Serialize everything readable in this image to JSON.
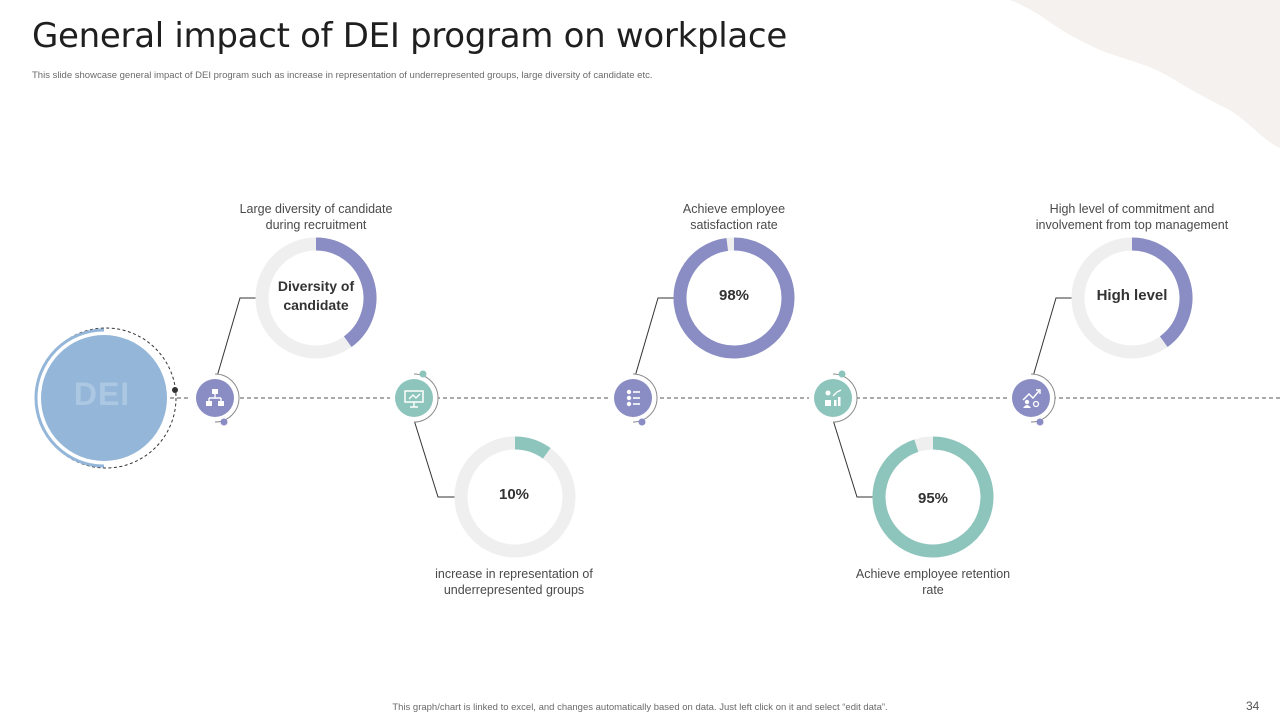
{
  "title": "General impact of DEI program on workplace",
  "subtitle": "This slide showcase general impact of DEI  program such as increase in representation of underrepresented groups, large diversity of candidate etc.",
  "center_label": "DEI",
  "items": [
    {
      "caption": "Large diversity  of candidate\nduring recruitment",
      "ring_label": "Diversity of\ncandidate",
      "percent": 40,
      "color": "#8a8cc4",
      "icon": "hierarchy-icon"
    },
    {
      "caption": "increase in representation of\nunderrepresented  groups",
      "ring_label": "10%",
      "percent": 10,
      "color": "#8dc5bd",
      "icon": "presentation-icon"
    },
    {
      "caption": "Achieve employee\nsatisfaction rate",
      "ring_label": "98%",
      "percent": 98,
      "color": "#8a8cc4",
      "icon": "list-icon"
    },
    {
      "caption": "Achieve  employee retention\nrate",
      "ring_label": "95%",
      "percent": 95,
      "color": "#8dc5bd",
      "icon": "growth-chart-icon"
    },
    {
      "caption": "High level  of commitment and\ninvolvement  from top management",
      "ring_label": "High level",
      "percent": 40,
      "color": "#8a8cc4",
      "icon": "management-growth-icon"
    }
  ],
  "footer": "This graph/chart is linked to excel, and changes automatically based on data. Just left click on it and select “edit data”.",
  "page_number": "34",
  "colors": {
    "purple": "#8a8cc4",
    "teal": "#8dc5bd",
    "ring_track": "#efefef",
    "dei_fill": "#94b6d9",
    "title": "#1f1f1f"
  }
}
